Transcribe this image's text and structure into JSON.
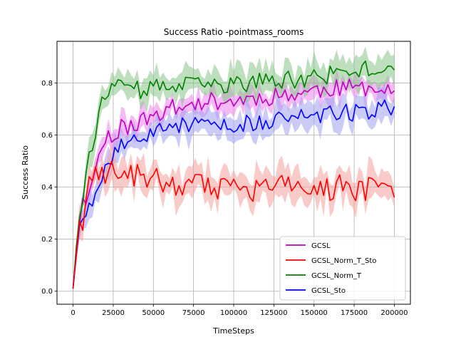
{
  "chart_data": {
    "type": "line",
    "title": "Success Ratio -pointmass_rooms",
    "xlabel": "TimeSteps",
    "ylabel": "Success Ratio",
    "xlim": [
      -10000,
      210000
    ],
    "ylim": [
      -0.05,
      0.96
    ],
    "xticks": [
      0,
      25000,
      50000,
      75000,
      100000,
      125000,
      150000,
      175000,
      200000
    ],
    "yticks": [
      0.0,
      0.2,
      0.4,
      0.6,
      0.8
    ],
    "ytick_labels": [
      "0.0",
      "0.2",
      "0.4",
      "0.6",
      "0.8"
    ],
    "grid": true,
    "legend_position": "lower-right",
    "x_step": 2000,
    "series": [
      {
        "name": "GCSL",
        "color": "#bf00bf",
        "band_color": "#ee82ee"
      },
      {
        "name": "GCSL_Norm_T_Sto",
        "color": "#ff0000",
        "band_color": "#f4a09a"
      },
      {
        "name": "GCSL_Norm_T",
        "color": "#008000",
        "band_color": "#88c488"
      },
      {
        "name": "GCSL_Sto",
        "color": "#0000ff",
        "band_color": "#9fa0ee"
      }
    ],
    "series_values": [
      {
        "start": 0.0,
        "curve": [
          [
            0,
            0.01
          ],
          [
            2000,
            0.14
          ],
          [
            4000,
            0.27
          ],
          [
            6000,
            0.34
          ],
          [
            8000,
            0.32
          ],
          [
            10000,
            0.4
          ],
          [
            14000,
            0.48
          ],
          [
            18000,
            0.55
          ],
          [
            22000,
            0.6
          ],
          [
            26000,
            0.61
          ],
          [
            30000,
            0.63
          ],
          [
            40000,
            0.64
          ],
          [
            50000,
            0.68
          ],
          [
            60000,
            0.7
          ],
          [
            70000,
            0.71
          ],
          [
            80000,
            0.73
          ],
          [
            90000,
            0.73
          ],
          [
            100000,
            0.73
          ],
          [
            110000,
            0.74
          ],
          [
            125000,
            0.75
          ],
          [
            140000,
            0.76
          ],
          [
            150000,
            0.77
          ],
          [
            160000,
            0.78
          ],
          [
            175000,
            0.78
          ],
          [
            190000,
            0.79
          ],
          [
            200000,
            0.78
          ]
        ],
        "noise": 0.035,
        "band": 0.04,
        "seed": 11,
        "last": 0.77
      },
      {
        "start": 0.0,
        "curve": [
          [
            0,
            0.01
          ],
          [
            2000,
            0.15
          ],
          [
            4000,
            0.27
          ],
          [
            6000,
            0.21
          ],
          [
            8000,
            0.33
          ],
          [
            10000,
            0.4
          ],
          [
            14000,
            0.45
          ],
          [
            18000,
            0.46
          ],
          [
            22000,
            0.46
          ],
          [
            26000,
            0.46
          ],
          [
            35000,
            0.45
          ],
          [
            50000,
            0.43
          ],
          [
            70000,
            0.41
          ],
          [
            90000,
            0.39
          ],
          [
            110000,
            0.39
          ],
          [
            130000,
            0.4
          ],
          [
            150000,
            0.39
          ],
          [
            170000,
            0.4
          ],
          [
            200000,
            0.38
          ]
        ],
        "noise": 0.05,
        "band": 0.06,
        "seed": 23,
        "last": 0.36
      },
      {
        "start": 0.0,
        "curve": [
          [
            0,
            0.01
          ],
          [
            2000,
            0.17
          ],
          [
            4000,
            0.3
          ],
          [
            6000,
            0.35
          ],
          [
            8000,
            0.45
          ],
          [
            10000,
            0.52
          ],
          [
            14000,
            0.62
          ],
          [
            18000,
            0.72
          ],
          [
            22000,
            0.76
          ],
          [
            26000,
            0.78
          ],
          [
            35000,
            0.77
          ],
          [
            50000,
            0.78
          ],
          [
            70000,
            0.79
          ],
          [
            90000,
            0.79
          ],
          [
            110000,
            0.8
          ],
          [
            130000,
            0.81
          ],
          [
            150000,
            0.82
          ],
          [
            170000,
            0.84
          ],
          [
            190000,
            0.86
          ],
          [
            200000,
            0.85
          ]
        ],
        "noise": 0.035,
        "band": 0.055,
        "seed": 37,
        "last": 0.85
      },
      {
        "start": 0.0,
        "curve": [
          [
            0,
            0.01
          ],
          [
            2000,
            0.15
          ],
          [
            4000,
            0.25
          ],
          [
            6000,
            0.29
          ],
          [
            8000,
            0.31
          ],
          [
            10000,
            0.33
          ],
          [
            14000,
            0.39
          ],
          [
            18000,
            0.45
          ],
          [
            22000,
            0.5
          ],
          [
            26000,
            0.54
          ],
          [
            30000,
            0.56
          ],
          [
            40000,
            0.59
          ],
          [
            50000,
            0.61
          ],
          [
            60000,
            0.63
          ],
          [
            80000,
            0.64
          ],
          [
            100000,
            0.64
          ],
          [
            120000,
            0.65
          ],
          [
            140000,
            0.67
          ],
          [
            160000,
            0.68
          ],
          [
            180000,
            0.69
          ],
          [
            200000,
            0.71
          ]
        ],
        "noise": 0.035,
        "band": 0.05,
        "seed": 53,
        "last": 0.71
      }
    ]
  }
}
